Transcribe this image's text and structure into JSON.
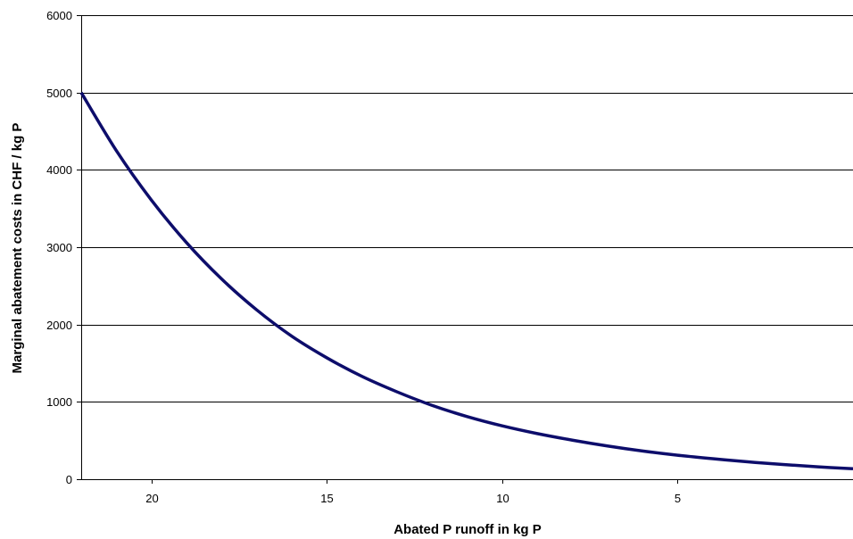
{
  "chart_data": {
    "type": "line",
    "title": "",
    "xlabel": "Abated P runoff in kg P",
    "ylabel": "Marginal abatement costs in CHF / kg P",
    "x_reversed": true,
    "xlim": [
      22,
      0
    ],
    "ylim": [
      0,
      6000
    ],
    "x_ticks": [
      20,
      15,
      10,
      5
    ],
    "x_tick_labels": [
      "20",
      "15",
      "10",
      "5"
    ],
    "y_ticks": [
      0,
      1000,
      2000,
      3000,
      4000,
      5000,
      6000
    ],
    "y_tick_labels": [
      "0",
      "1000",
      "2000",
      "3000",
      "4000",
      "5000",
      "6000"
    ],
    "grid": "horizontal",
    "legend": "none",
    "line_color": "#0d0d6b",
    "series": [
      {
        "x": [
          22,
          21,
          20,
          19,
          18,
          17,
          16,
          15,
          14,
          13,
          12,
          11,
          10,
          9,
          8,
          7,
          6,
          5,
          4,
          3,
          2,
          1,
          0
        ],
        "y": [
          5000,
          4250,
          3610,
          3060,
          2590,
          2190,
          1850,
          1570,
          1330,
          1130,
          955,
          810,
          690,
          590,
          505,
          430,
          365,
          310,
          265,
          225,
          190,
          160,
          135
        ]
      }
    ]
  }
}
